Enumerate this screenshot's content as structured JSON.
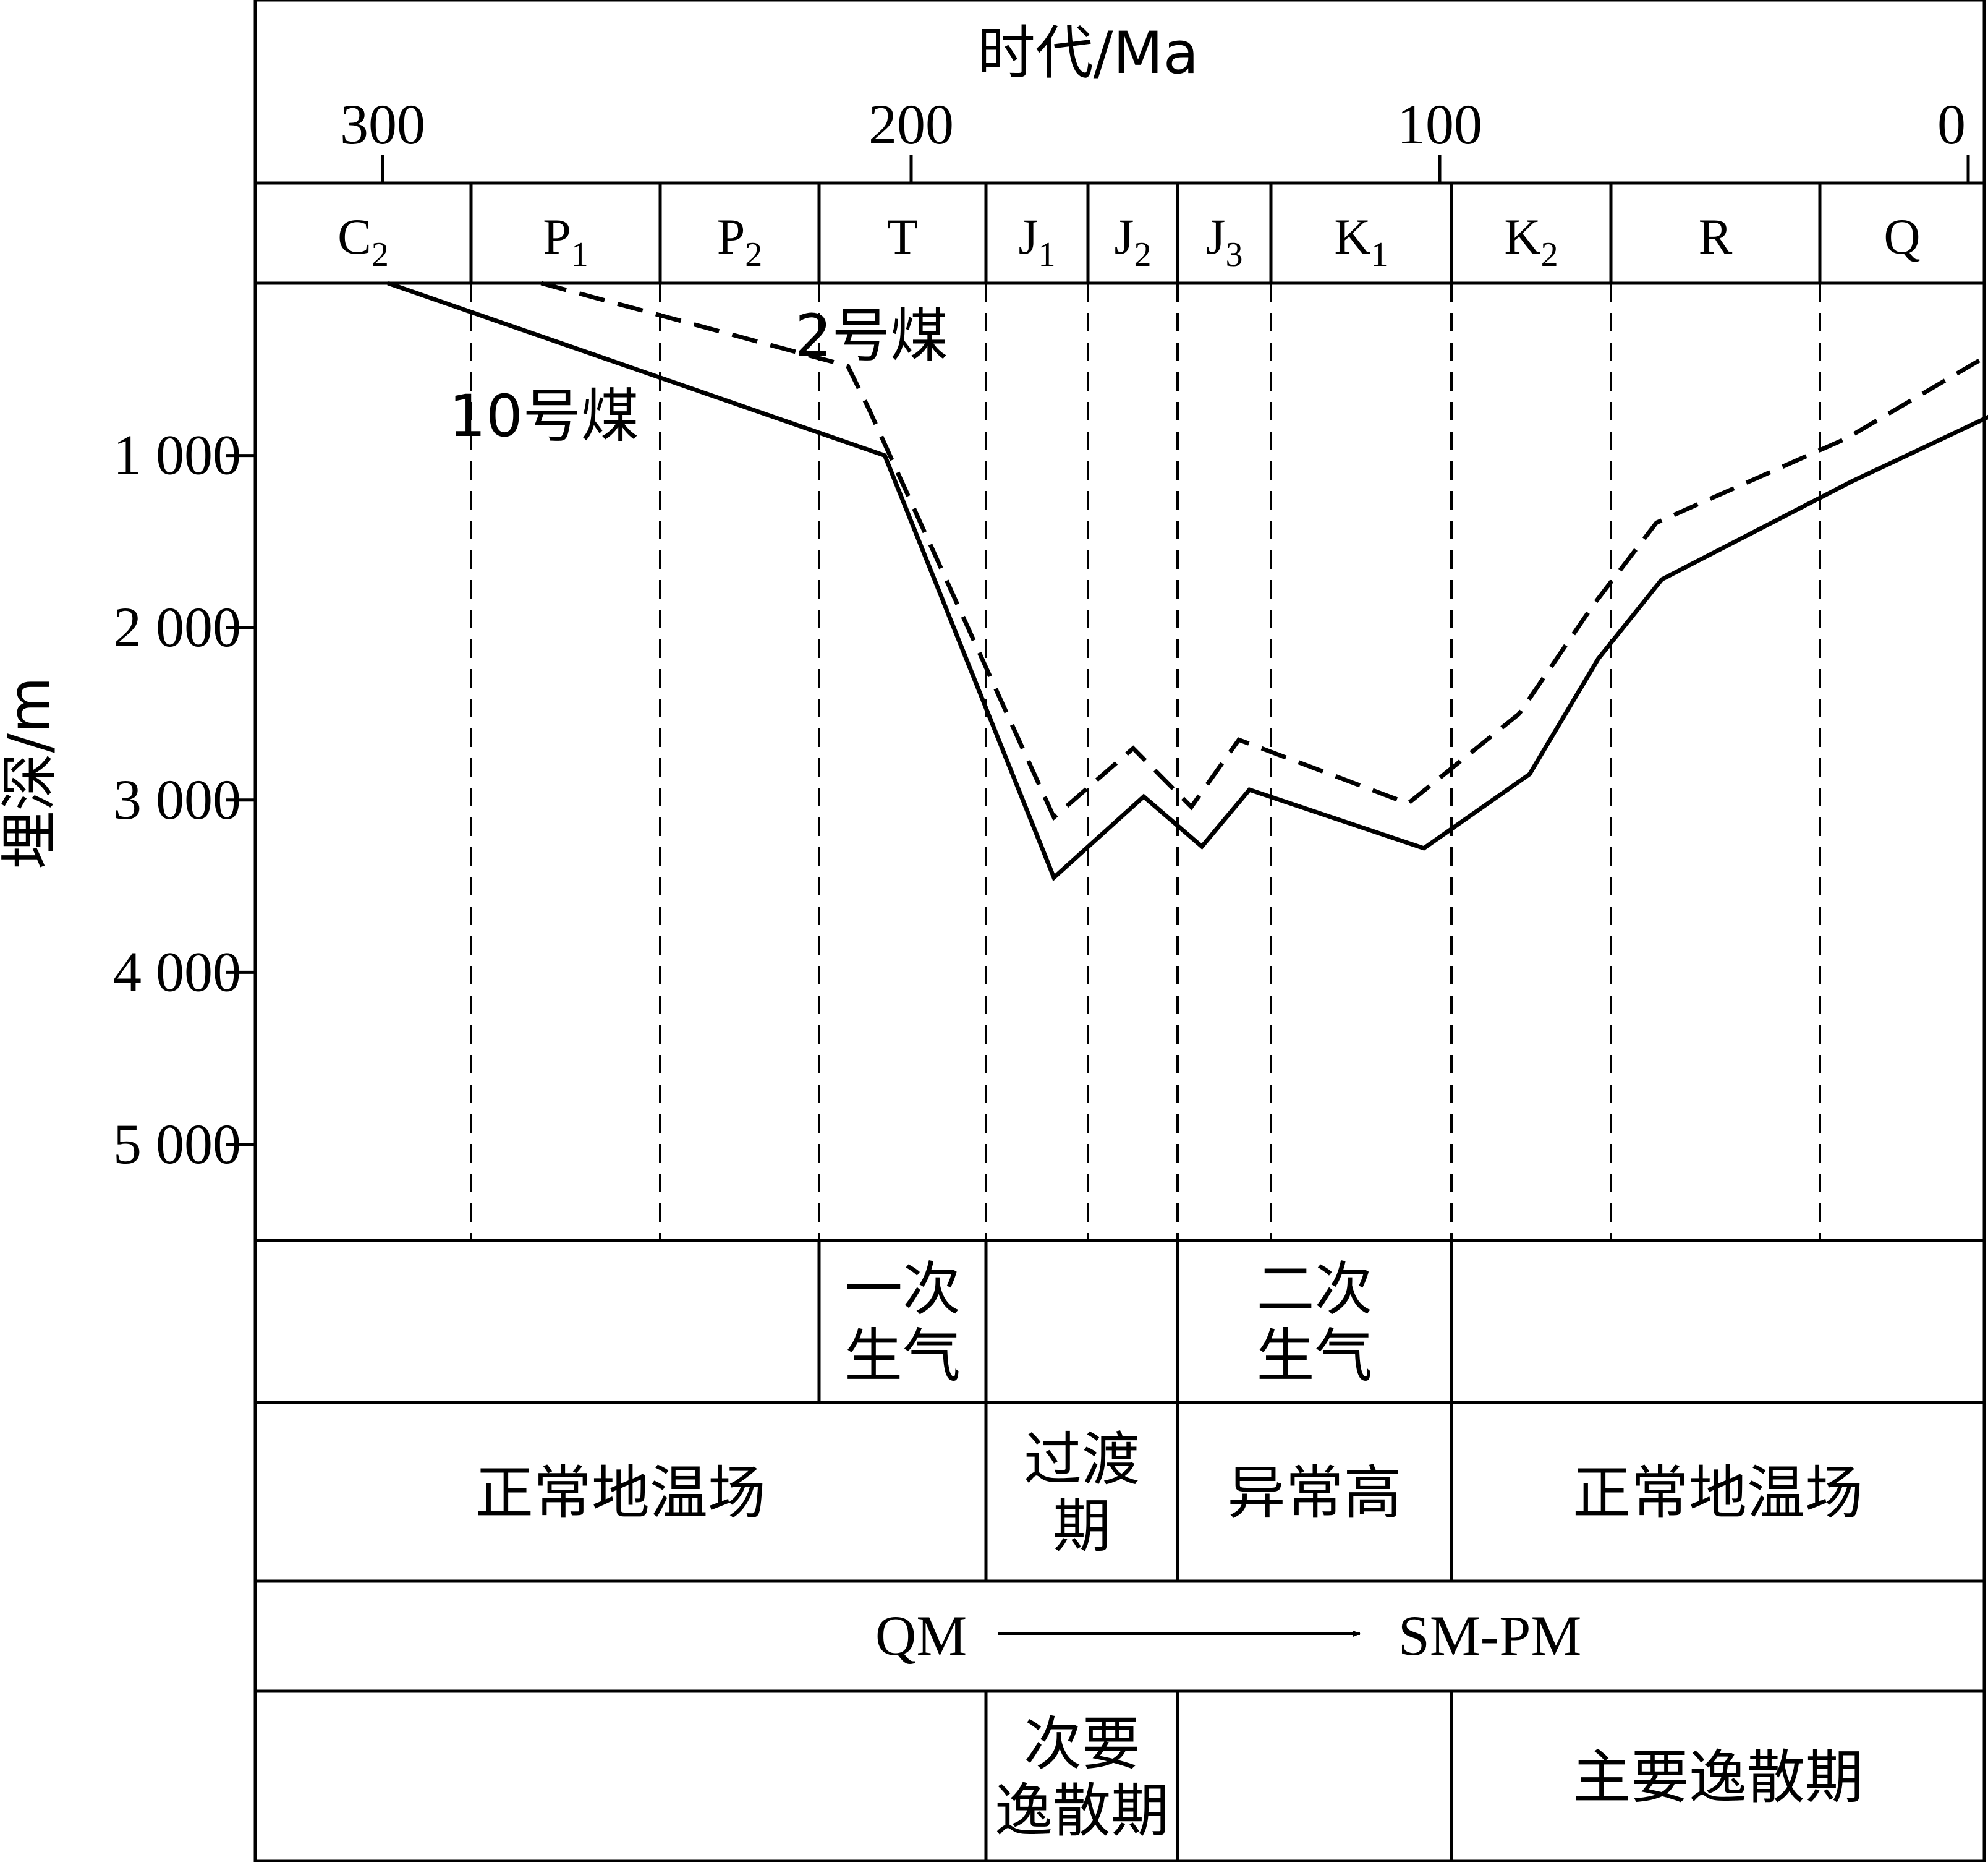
{
  "chart_data": {
    "type": "line",
    "top_axis_label": "时代/Ma",
    "top_ticks": [
      {
        "value": 300,
        "label": "300"
      },
      {
        "value": 200,
        "label": "200"
      },
      {
        "value": 100,
        "label": "100"
      },
      {
        "value": 0,
        "label": "0"
      }
    ],
    "ylabel": "埋深/m",
    "y_ticks": [
      {
        "value": 1000,
        "label": "1 000"
      },
      {
        "value": 2000,
        "label": "2 000"
      },
      {
        "value": 3000,
        "label": "3 000"
      },
      {
        "value": 4000,
        "label": "4 000"
      },
      {
        "value": 5000,
        "label": "5 000"
      }
    ],
    "periods": [
      {
        "name": "C",
        "sub": "2"
      },
      {
        "name": "P",
        "sub": "1"
      },
      {
        "name": "P",
        "sub": "2"
      },
      {
        "name": "T",
        "sub": ""
      },
      {
        "name": "J",
        "sub": "1"
      },
      {
        "name": "J",
        "sub": "2"
      },
      {
        "name": "J",
        "sub": "3"
      },
      {
        "name": "K",
        "sub": "1"
      },
      {
        "name": "K",
        "sub": "2"
      },
      {
        "name": "R",
        "sub": ""
      },
      {
        "name": "Q",
        "sub": ""
      }
    ],
    "series": [
      {
        "name": "10号煤",
        "style": "solid",
        "points": [
          [
            299,
            0
          ],
          [
            205,
            1000
          ],
          [
            173,
            3450
          ],
          [
            156,
            2980
          ],
          [
            145,
            3270
          ],
          [
            136,
            2940
          ],
          [
            103,
            3280
          ],
          [
            83,
            2850
          ],
          [
            70,
            2180
          ],
          [
            58,
            1720
          ],
          [
            22,
            1150
          ],
          [
            -7,
            730
          ]
        ]
      },
      {
        "name": "2号煤",
        "style": "dashed",
        "points": [
          [
            270,
            0
          ],
          [
            212,
            480
          ],
          [
            208,
            730
          ],
          [
            173,
            3100
          ],
          [
            158,
            2700
          ],
          [
            147,
            3040
          ],
          [
            138,
            2650
          ],
          [
            106,
            3020
          ],
          [
            85,
            2500
          ],
          [
            71,
            1870
          ],
          [
            59,
            1390
          ],
          [
            23,
            900
          ],
          [
            -7,
            360
          ]
        ]
      }
    ],
    "legend_labels": [
      {
        "text": "10号煤",
        "series": "10号煤"
      },
      {
        "text": "2号煤",
        "series": "2号煤"
      }
    ]
  },
  "table_rows": [
    {
      "cells": [
        {
          "span": [
            0,
            3
          ],
          "lines": []
        },
        {
          "span": [
            3,
            4
          ],
          "lines": [
            "一次",
            "生气"
          ]
        },
        {
          "span": [
            4,
            6
          ],
          "lines": []
        },
        {
          "span": [
            6,
            8
          ],
          "lines": [
            "二次",
            "生气"
          ]
        },
        {
          "span": [
            8,
            11
          ],
          "lines": []
        }
      ]
    },
    {
      "cells": [
        {
          "span": [
            0,
            4
          ],
          "lines": [
            "正常地温场"
          ]
        },
        {
          "span": [
            4,
            6
          ],
          "lines": [
            "过渡",
            "期"
          ]
        },
        {
          "span": [
            6,
            8
          ],
          "lines": [
            "异常高"
          ]
        },
        {
          "span": [
            8,
            11
          ],
          "lines": [
            "正常地温场"
          ]
        }
      ]
    },
    {
      "arrow": {
        "from": "QM",
        "to": "SM-PM"
      }
    },
    {
      "cells": [
        {
          "span": [
            0,
            4
          ],
          "lines": []
        },
        {
          "span": [
            4,
            6
          ],
          "lines": [
            "次要",
            "逸散期"
          ]
        },
        {
          "span": [
            6,
            8
          ],
          "lines": []
        },
        {
          "span": [
            8,
            11
          ],
          "lines": [
            "主要逸散期"
          ]
        }
      ]
    }
  ]
}
